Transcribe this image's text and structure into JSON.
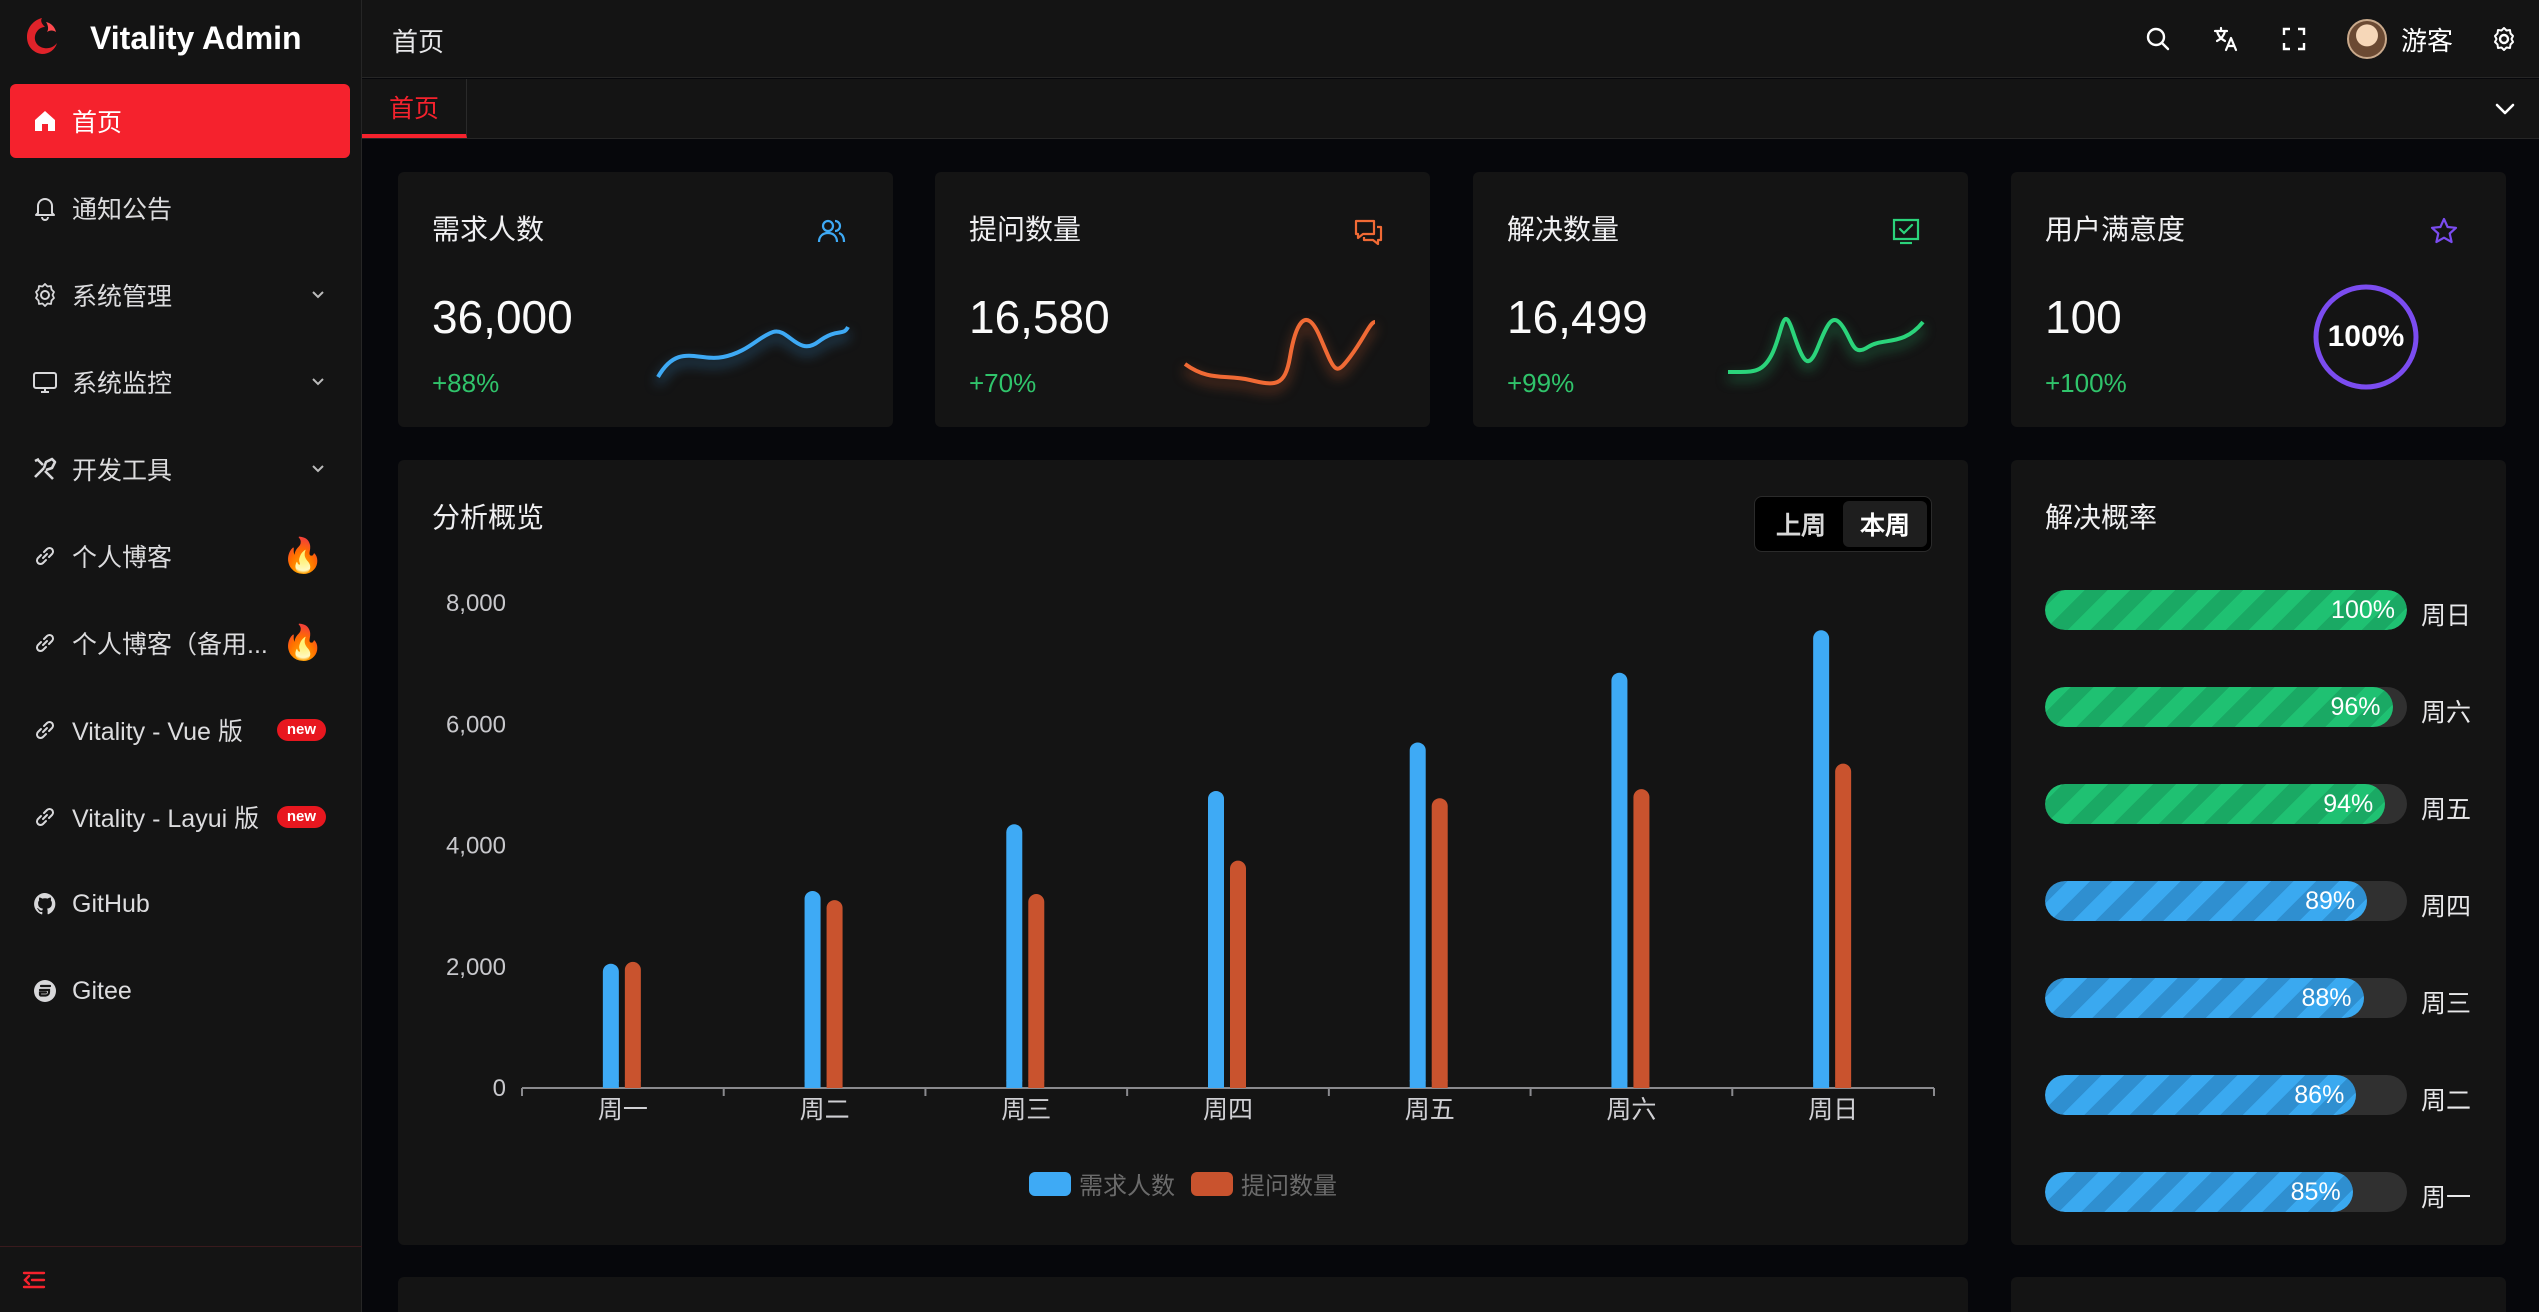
{
  "app": {
    "title": "Vitality Admin"
  },
  "sidebar": {
    "items": [
      {
        "label": "首页",
        "icon": "home-icon",
        "active": true
      },
      {
        "label": "通知公告",
        "icon": "bell-icon"
      },
      {
        "label": "系统管理",
        "icon": "gear-icon",
        "has_children": true
      },
      {
        "label": "系统监控",
        "icon": "monitor-icon",
        "has_children": true
      },
      {
        "label": "开发工具",
        "icon": "tools-icon",
        "has_children": true
      },
      {
        "label": "个人博客",
        "icon": "link-icon",
        "badge": "🔥"
      },
      {
        "label": "个人博客（备用...",
        "icon": "link-icon",
        "badge": "🔥"
      },
      {
        "label": "Vitality - Vue 版",
        "icon": "link-icon",
        "tag": "new"
      },
      {
        "label": "Vitality - Layui 版",
        "icon": "link-icon",
        "tag": "new"
      },
      {
        "label": "GitHub",
        "icon": "github-icon"
      },
      {
        "label": "Gitee",
        "icon": "gitee-icon"
      }
    ]
  },
  "header": {
    "breadcrumb": "首页",
    "user_name": "游客"
  },
  "tabs": [
    {
      "label": "首页"
    }
  ],
  "stats": [
    {
      "title": "需求人数",
      "value": "36,000",
      "change": "+88%",
      "icon": "users-icon",
      "color": "#3eaaf5"
    },
    {
      "title": "提问数量",
      "value": "16,580",
      "change": "+70%",
      "icon": "chat-icon",
      "color": "#f06a35"
    },
    {
      "title": "解决数量",
      "value": "16,499",
      "change": "+99%",
      "icon": "check-square-icon",
      "color": "#2bd47b"
    },
    {
      "title": "用户满意度",
      "value": "100",
      "change": "+100%",
      "icon": "star-icon",
      "color": "#7b4cf0",
      "ring_label": "100%"
    }
  ],
  "analysis": {
    "title": "分析概览",
    "toggle": {
      "last_week": "上周",
      "this_week": "本周",
      "selected": "本周"
    }
  },
  "chart_data": {
    "type": "bar",
    "categories": [
      "周一",
      "周二",
      "周三",
      "周四",
      "周五",
      "周六",
      "周日"
    ],
    "series": [
      {
        "name": "需求人数",
        "color": "#3eaaf5",
        "values": [
          2050,
          3250,
          4350,
          4900,
          5700,
          6850,
          7550
        ]
      },
      {
        "name": "提问数量",
        "color": "#c9532e",
        "values": [
          2080,
          3100,
          3200,
          3750,
          4780,
          4930,
          5350
        ]
      }
    ],
    "y_ticks": [
      "0",
      "2,000",
      "4,000",
      "6,000",
      "8,000"
    ],
    "ylim": [
      0,
      8000
    ],
    "legend": "bottom-center"
  },
  "solve_rate": {
    "title": "解决概率",
    "rows": [
      {
        "day": "周日",
        "percent": 100,
        "label": "100%",
        "color": "green"
      },
      {
        "day": "周六",
        "percent": 96,
        "label": "96%",
        "color": "green"
      },
      {
        "day": "周五",
        "percent": 94,
        "label": "94%",
        "color": "green"
      },
      {
        "day": "周四",
        "percent": 89,
        "label": "89%",
        "color": "blue"
      },
      {
        "day": "周三",
        "percent": 88,
        "label": "88%",
        "color": "blue"
      },
      {
        "day": "周二",
        "percent": 86,
        "label": "86%",
        "color": "blue"
      },
      {
        "day": "周一",
        "percent": 85,
        "label": "85%",
        "color": "blue"
      }
    ]
  }
}
